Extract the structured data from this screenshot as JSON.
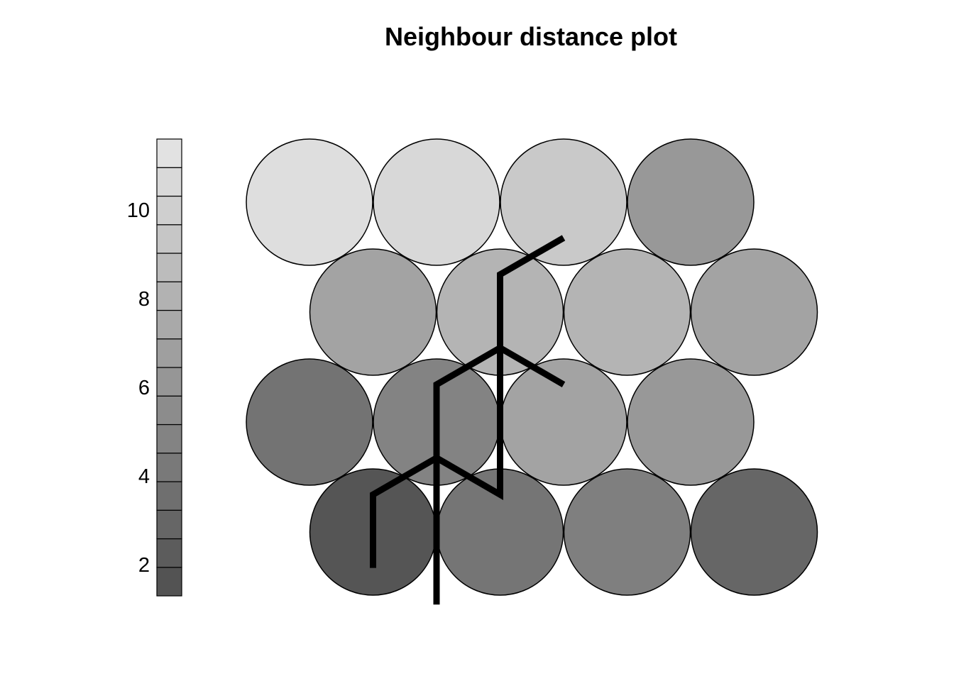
{
  "chart_data": {
    "type": "heatmap",
    "title": "Neighbour distance plot",
    "colorbar": {
      "ticks": [
        2,
        4,
        6,
        8,
        10
      ],
      "range": [
        1.3,
        11.6
      ]
    },
    "grid": {
      "rows": 4,
      "cols": 4,
      "layout": "hexagonal",
      "cells": [
        {
          "row": 1,
          "col": 1,
          "value": 1.8
        },
        {
          "row": 1,
          "col": 2,
          "value": 3.9
        },
        {
          "row": 1,
          "col": 3,
          "value": 4.6
        },
        {
          "row": 1,
          "col": 4,
          "value": 2.9
        },
        {
          "row": 2,
          "col": 1,
          "value": 3.8
        },
        {
          "row": 2,
          "col": 2,
          "value": 4.9
        },
        {
          "row": 2,
          "col": 3,
          "value": 7.0
        },
        {
          "row": 2,
          "col": 4,
          "value": 6.3
        },
        {
          "row": 3,
          "col": 1,
          "value": 7.0
        },
        {
          "row": 3,
          "col": 2,
          "value": 8.2
        },
        {
          "row": 3,
          "col": 3,
          "value": 8.2
        },
        {
          "row": 3,
          "col": 4,
          "value": 7.0
        },
        {
          "row": 4,
          "col": 1,
          "value": 11.0
        },
        {
          "row": 4,
          "col": 2,
          "value": 10.6
        },
        {
          "row": 4,
          "col": 3,
          "value": 9.6
        },
        {
          "row": 4,
          "col": 4,
          "value": 6.3
        }
      ]
    },
    "boundaries": [
      [
        [
          1,
          1
        ],
        [
          1,
          2
        ],
        [
          2,
          2
        ],
        [
          2,
          3
        ],
        [
          3,
          3
        ],
        [
          3,
          4
        ],
        [
          4,
          4
        ]
      ],
      [
        [
          2,
          1
        ],
        [
          2,
          2
        ],
        [
          3,
          2
        ],
        [
          3,
          3
        ],
        [
          4,
          3
        ]
      ]
    ]
  }
}
